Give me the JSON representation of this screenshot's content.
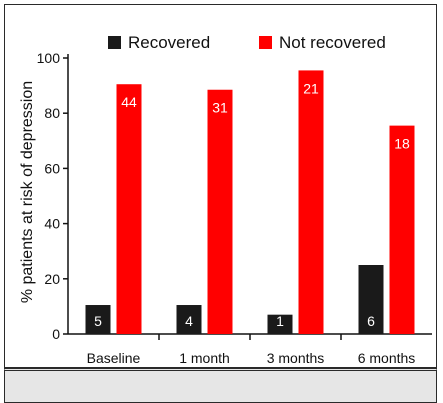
{
  "chart_data": {
    "type": "bar",
    "title": "",
    "xlabel": "",
    "ylabel": "% patients at risk of depression",
    "categories": [
      "Baseline",
      "1 month",
      "3 months",
      "6 months"
    ],
    "ylim": [
      0,
      100
    ],
    "yticks": [
      0,
      20,
      40,
      60,
      80,
      100
    ],
    "grid": false,
    "legend": "top",
    "series": [
      {
        "name": "Recovered",
        "color": "#1a1a1a",
        "values": [
          10.5,
          10.5,
          7,
          25
        ],
        "labels": [
          "5",
          "4",
          "1",
          "6"
        ]
      },
      {
        "name": "Not recovered",
        "color": "#ff0000",
        "values": [
          90.5,
          88.5,
          95.5,
          75.5
        ],
        "labels": [
          "44",
          "31",
          "21",
          "18"
        ]
      }
    ]
  }
}
